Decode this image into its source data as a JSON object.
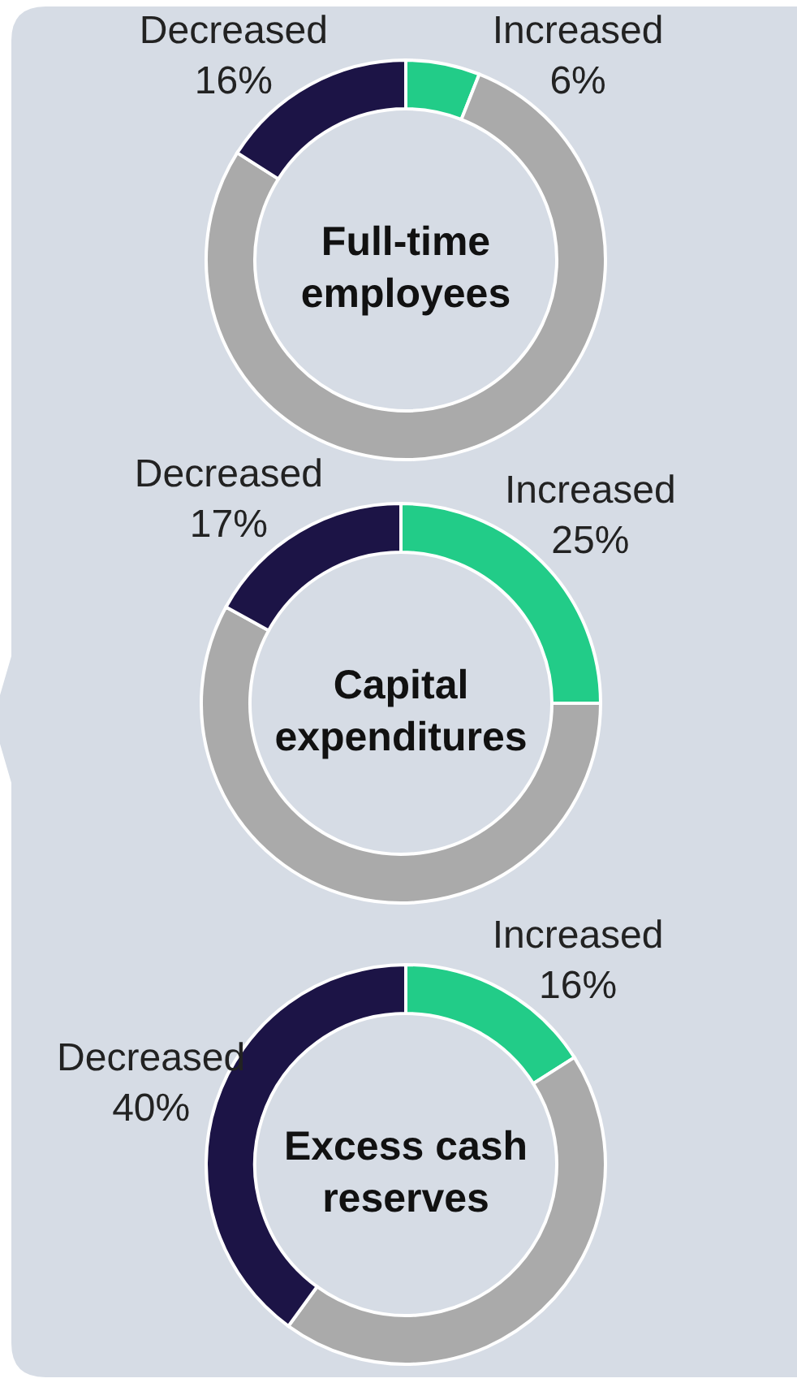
{
  "chart_data": [
    {
      "type": "donut",
      "title": "Full-time employees",
      "categories": [
        "Increased",
        null,
        "Decreased"
      ],
      "values": [
        6,
        78,
        16
      ],
      "value_labels": [
        "6%",
        null,
        "16%"
      ],
      "colors": [
        "#22cc88",
        "#aaaaaa",
        "#1c1446"
      ]
    },
    {
      "type": "donut",
      "title": "Capital expenditures",
      "categories": [
        "Increased",
        null,
        "Decreased"
      ],
      "values": [
        25,
        58,
        17
      ],
      "value_labels": [
        "25%",
        null,
        "17%"
      ],
      "colors": [
        "#22cc88",
        "#aaaaaa",
        "#1c1446"
      ]
    },
    {
      "type": "donut",
      "title": "Excess cash reserves",
      "categories": [
        "Increased",
        null,
        "Decreased"
      ],
      "values": [
        16,
        44,
        40
      ],
      "value_labels": [
        "16%",
        null,
        "40%"
      ],
      "colors": [
        "#22cc88",
        "#aaaaaa",
        "#1c1446"
      ]
    }
  ]
}
